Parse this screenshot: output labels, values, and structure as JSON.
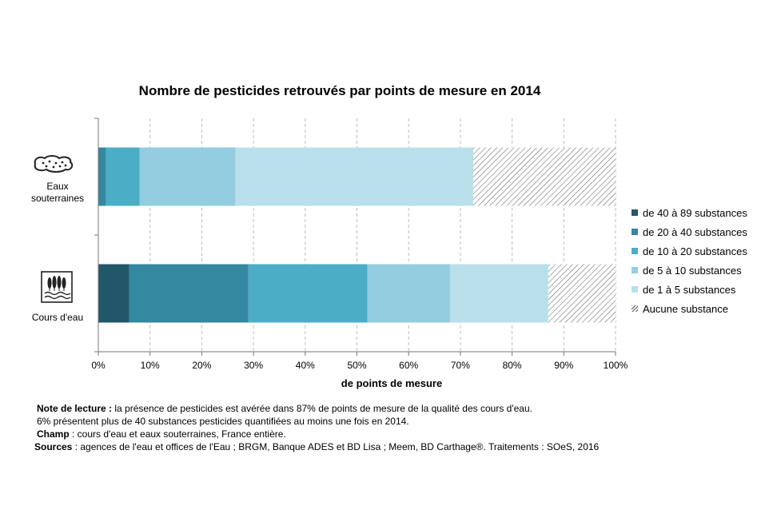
{
  "chart_data": {
    "type": "bar",
    "orientation": "horizontal",
    "stacked": true,
    "title": "Nombre de pesticides retrouvés par points de mesure en 2014",
    "xlabel": "de points de mesure",
    "xlim": [
      0,
      100
    ],
    "xticks": [
      "0%",
      "10%",
      "20%",
      "30%",
      "40%",
      "50%",
      "60%",
      "70%",
      "80%",
      "90%",
      "100%"
    ],
    "grid": "vertical dashed",
    "legend_position": "right",
    "categories": [
      "Eaux souterraines",
      "Cours d'eau"
    ],
    "series": [
      {
        "name": "de 40 à 89 substances",
        "color": "#22576a",
        "values": [
          0,
          6
        ]
      },
      {
        "name": "de 20 à 40 substances",
        "color": "#34889f",
        "values": [
          1.5,
          23
        ]
      },
      {
        "name": "de 10 à 20 substances",
        "color": "#4badc6",
        "values": [
          6.5,
          23
        ]
      },
      {
        "name": "de 5 à 10 substances",
        "color": "#93cddf",
        "values": [
          18.5,
          16
        ]
      },
      {
        "name": "de 1 à 5 substances",
        "color": "#b9e0ea",
        "values": [
          46,
          19
        ]
      },
      {
        "name": "Aucune substance",
        "color": "hatch",
        "values": [
          27.5,
          13
        ]
      }
    ]
  },
  "categories_display": [
    {
      "line1": "Eaux",
      "line2": "souterraines",
      "icon": "groundwater-icon"
    },
    {
      "line1": "Cours d'eau",
      "line2": "",
      "icon": "river-icon"
    }
  ],
  "notes": {
    "lecture_label": "Note de lecture :",
    "lecture_text": " la présence de pesticides est avérée dans 87% de points de mesure de la qualité des cours d'eau.",
    "lecture_text2": "6% présentent plus de 40 substances pesticides quantifiées au moins une fois en 2014.",
    "champ_label": "Champ",
    "champ_text": " : cours d'eau et eaux souterraines, France entière.",
    "sources_label": "Sources",
    "sources_text": " : agences de l'eau et offices de l'Eau ; BRGM, Banque ADES et BD Lisa ; Meem, BD Carthage®. Traitements : SOeS, 2016"
  }
}
